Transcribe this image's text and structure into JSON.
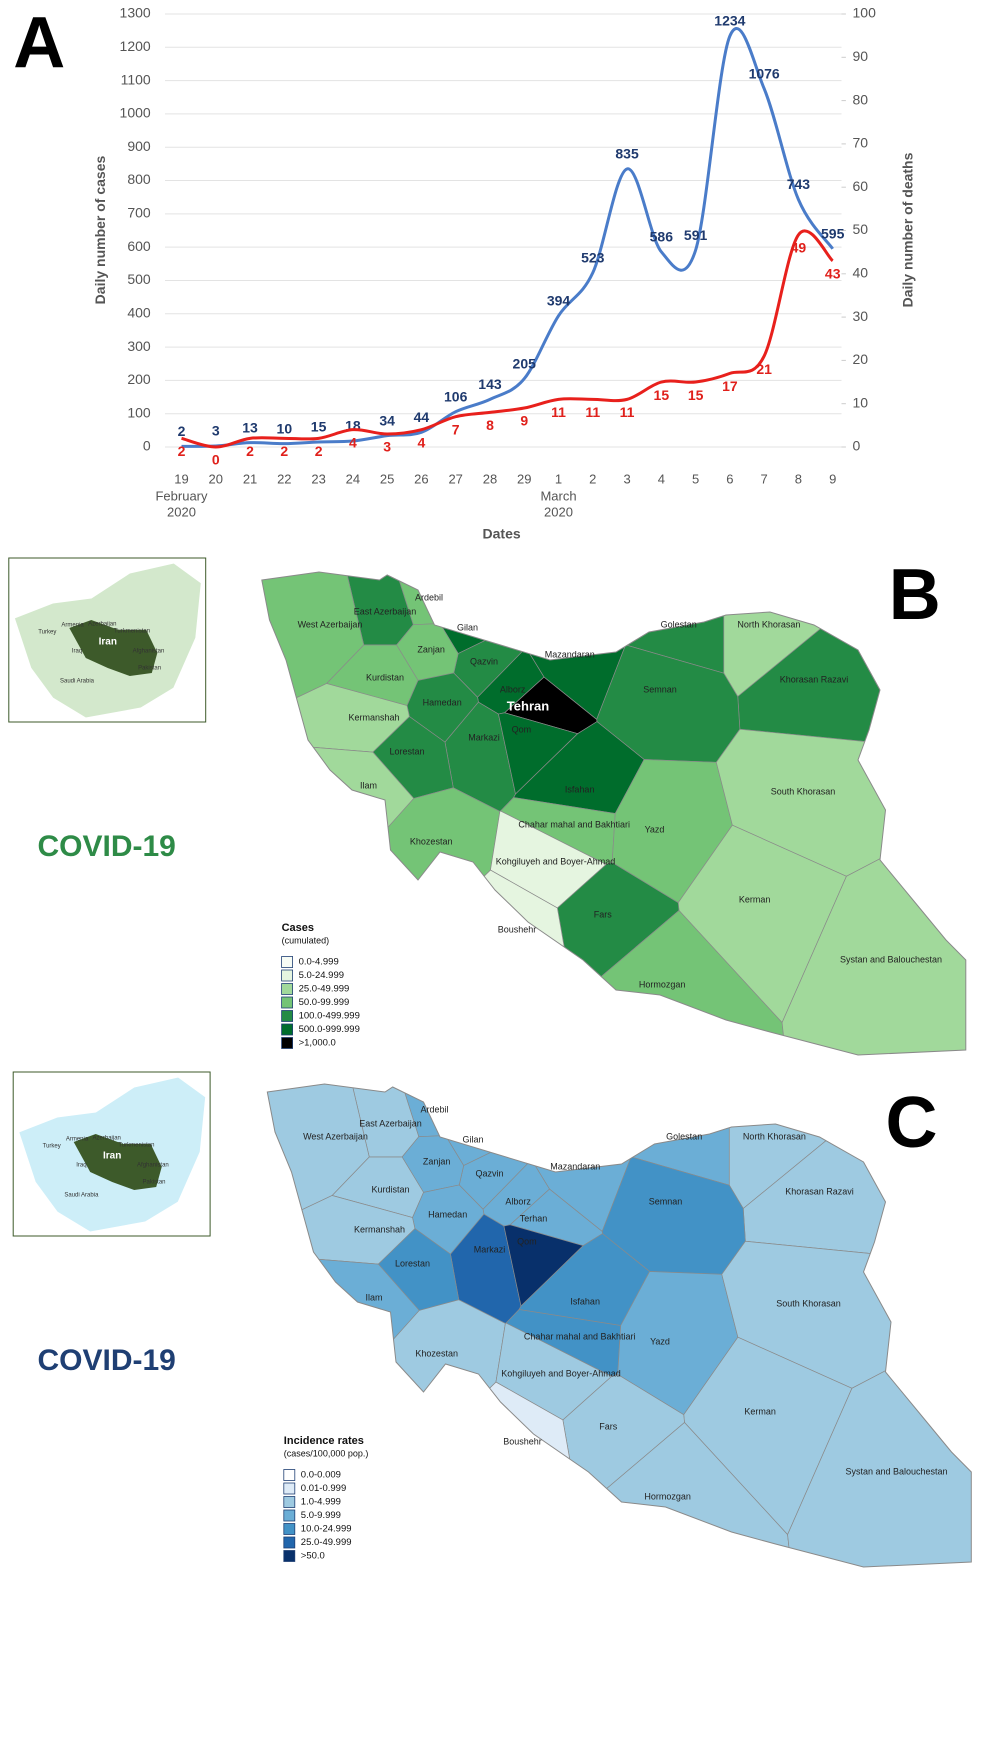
{
  "chart_data": {
    "type": "line",
    "panel": "A",
    "x_label": "Dates",
    "y_label": "Daily number of cases",
    "y2_label": "Daily number of deaths",
    "categories": [
      "19",
      "20",
      "21",
      "22",
      "23",
      "24",
      "25",
      "26",
      "27",
      "28",
      "29",
      "1",
      "2",
      "3",
      "4",
      "5",
      "6",
      "7",
      "8",
      "9"
    ],
    "x_groups": [
      [
        "February",
        "2020"
      ],
      [
        "March",
        "2020"
      ]
    ],
    "ylim": [
      0,
      1300
    ],
    "yticks": [
      0,
      100,
      200,
      300,
      400,
      500,
      600,
      700,
      800,
      900,
      1000,
      1100,
      1200,
      1300
    ],
    "y2lim": [
      0,
      100
    ],
    "y2ticks": [
      0,
      10,
      20,
      30,
      40,
      50,
      60,
      70,
      80,
      90,
      100
    ],
    "grid": true,
    "series": [
      {
        "color": "#4a7cc9",
        "label_color": "#1f3a6e",
        "values": [
          2,
          3,
          13,
          10,
          15,
          18,
          34,
          44,
          106,
          143,
          205,
          394,
          523,
          835,
          586,
          591,
          1234,
          1076,
          743,
          595
        ]
      },
      {
        "color": "#e8201c",
        "label_color": "#e0201b",
        "axis": "y2",
        "values": [
          2,
          0,
          2,
          2,
          2,
          4,
          3,
          4,
          7,
          8,
          9,
          11,
          11,
          11,
          15,
          15,
          17,
          21,
          49,
          43
        ]
      }
    ]
  },
  "maps": [
    {
      "panel": "B",
      "heading": "COVID-19",
      "heading_color": "#2e8b47",
      "inset_color": "#d3e8cc",
      "inset_iran_color": "#3d5a2a",
      "inset_labels": [
        "Turkey",
        "Armenia",
        "Azerbaijan",
        "Turkmenistan",
        "Iraq",
        "Iran",
        "Afghanistan",
        "Pakistan",
        "Saudi Arabia"
      ],
      "legend": {
        "title": "Cases",
        "subtitle": "(cumulated)",
        "items": [
          {
            "label": "0.0-4.999",
            "color": "#f7fcf5"
          },
          {
            "label": "5.0-24.999",
            "color": "#e5f5e0"
          },
          {
            "label": "25.0-49.999",
            "color": "#a1d99b"
          },
          {
            "label": "50.0-99.999",
            "color": "#74c476"
          },
          {
            "label": "100.0-499.999",
            "color": "#238b45"
          },
          {
            "label": "500.0-999.999",
            "color": "#006d2c"
          },
          {
            "label": ">1,000.0",
            "color": "#000000"
          }
        ]
      },
      "provinces": [
        {
          "name": "Ardebil",
          "color": "#74c476"
        },
        {
          "name": "East Azerbaijan",
          "color": "#238b45"
        },
        {
          "name": "West Azerbaijan",
          "color": "#74c476"
        },
        {
          "name": "Gilan",
          "color": "#006d2c"
        },
        {
          "name": "Golestan",
          "color": "#238b45"
        },
        {
          "name": "North Khorasan",
          "color": "#a1d99b"
        },
        {
          "name": "Khorasan Razavi",
          "color": "#238b45"
        },
        {
          "name": "Mazandaran",
          "color": "#006d2c"
        },
        {
          "name": "Semnan",
          "color": "#238b45"
        },
        {
          "name": "Tehran",
          "color": "#000000"
        },
        {
          "name": "Qazvin",
          "color": "#238b45"
        },
        {
          "name": "Alborz",
          "color": "#006d2c"
        },
        {
          "name": "Zanjan",
          "color": "#74c476"
        },
        {
          "name": "Kurdistan",
          "color": "#74c476"
        },
        {
          "name": "Hamedan",
          "color": "#238b45"
        },
        {
          "name": "Markazi",
          "color": "#238b45"
        },
        {
          "name": "Qom",
          "color": "#006d2c"
        },
        {
          "name": "Kermanshah",
          "color": "#a1d99b"
        },
        {
          "name": "Lorestan",
          "color": "#238b45"
        },
        {
          "name": "Ilam",
          "color": "#a1d99b"
        },
        {
          "name": "Isfahan",
          "color": "#006d2c"
        },
        {
          "name": "Chahar mahal and Bakhtiari",
          "color": "#74c476"
        },
        {
          "name": "Khozestan",
          "color": "#74c476"
        },
        {
          "name": "Kohgiluyeh and Boyer-Ahmad",
          "color": "#e5f5e0"
        },
        {
          "name": "Yazd",
          "color": "#74c476"
        },
        {
          "name": "South Khorasan",
          "color": "#a1d99b"
        },
        {
          "name": "Kerman",
          "color": "#a1d99b"
        },
        {
          "name": "Fars",
          "color": "#238b45"
        },
        {
          "name": "Boushehr",
          "color": "#e5f5e0"
        },
        {
          "name": "Hormozgan",
          "color": "#74c476"
        },
        {
          "name": "Systan and Balouchestan",
          "color": "#a1d99b"
        }
      ]
    },
    {
      "panel": "C",
      "heading": "COVID-19",
      "heading_color": "#1f3f73",
      "inset_color": "#cdeef8",
      "inset_iran_color": "#3d5a2a",
      "inset_labels": [
        "Turkey",
        "Armenia",
        "Azerbaijan",
        "Turkmenistan",
        "Iraq",
        "Iran",
        "Afghanistan",
        "Pakistan",
        "Saudi Arabia"
      ],
      "legend": {
        "title": "Incidence rates",
        "subtitle": "(cases/100,000 pop.)",
        "items": [
          {
            "label": "0.0-0.009",
            "color": "#ffffff"
          },
          {
            "label": "0.01-0.999",
            "color": "#deebf7"
          },
          {
            "label": "1.0-4.999",
            "color": "#9ecae1"
          },
          {
            "label": "5.0-9.999",
            "color": "#6baed6"
          },
          {
            "label": "10.0-24.999",
            "color": "#4292c6"
          },
          {
            "label": "25.0-49.999",
            "color": "#2166ac"
          },
          {
            "label": ">50.0",
            "color": "#08306b"
          }
        ]
      },
      "provinces": [
        {
          "name": "Ardebil",
          "color": "#6baed6"
        },
        {
          "name": "East Azerbaijan",
          "color": "#9ecae1"
        },
        {
          "name": "West Azerbaijan",
          "color": "#9ecae1"
        },
        {
          "name": "Gilan",
          "color": "#6baed6"
        },
        {
          "name": "Golestan",
          "color": "#6baed6"
        },
        {
          "name": "North Khorasan",
          "color": "#9ecae1"
        },
        {
          "name": "Khorasan Razavi",
          "color": "#9ecae1"
        },
        {
          "name": "Mazandaran",
          "color": "#6baed6"
        },
        {
          "name": "Semnan",
          "color": "#4292c6"
        },
        {
          "name": "Terhan",
          "color": "#6baed6"
        },
        {
          "name": "Qazvin",
          "color": "#6baed6"
        },
        {
          "name": "Alborz",
          "color": "#6baed6"
        },
        {
          "name": "Zanjan",
          "color": "#6baed6"
        },
        {
          "name": "Kurdistan",
          "color": "#9ecae1"
        },
        {
          "name": "Hamedan",
          "color": "#6baed6"
        },
        {
          "name": "Markazi",
          "color": "#2166ac"
        },
        {
          "name": "Qom",
          "color": "#08306b"
        },
        {
          "name": "Kermanshah",
          "color": "#9ecae1"
        },
        {
          "name": "Lorestan",
          "color": "#4292c6"
        },
        {
          "name": "Ilam",
          "color": "#6baed6"
        },
        {
          "name": "Isfahan",
          "color": "#4292c6"
        },
        {
          "name": "Chahar mahal and Bakhtiari",
          "color": "#4292c6"
        },
        {
          "name": "Khozestan",
          "color": "#9ecae1"
        },
        {
          "name": "Kohgiluyeh and Boyer-Ahmad",
          "color": "#9ecae1"
        },
        {
          "name": "Yazd",
          "color": "#6baed6"
        },
        {
          "name": "South Khorasan",
          "color": "#9ecae1"
        },
        {
          "name": "Kerman",
          "color": "#9ecae1"
        },
        {
          "name": "Fars",
          "color": "#9ecae1"
        },
        {
          "name": "Boushehr",
          "color": "#deebf7"
        },
        {
          "name": "Hormozgan",
          "color": "#9ecae1"
        },
        {
          "name": "Systan and Balouchestan",
          "color": "#9ecae1"
        }
      ]
    }
  ]
}
